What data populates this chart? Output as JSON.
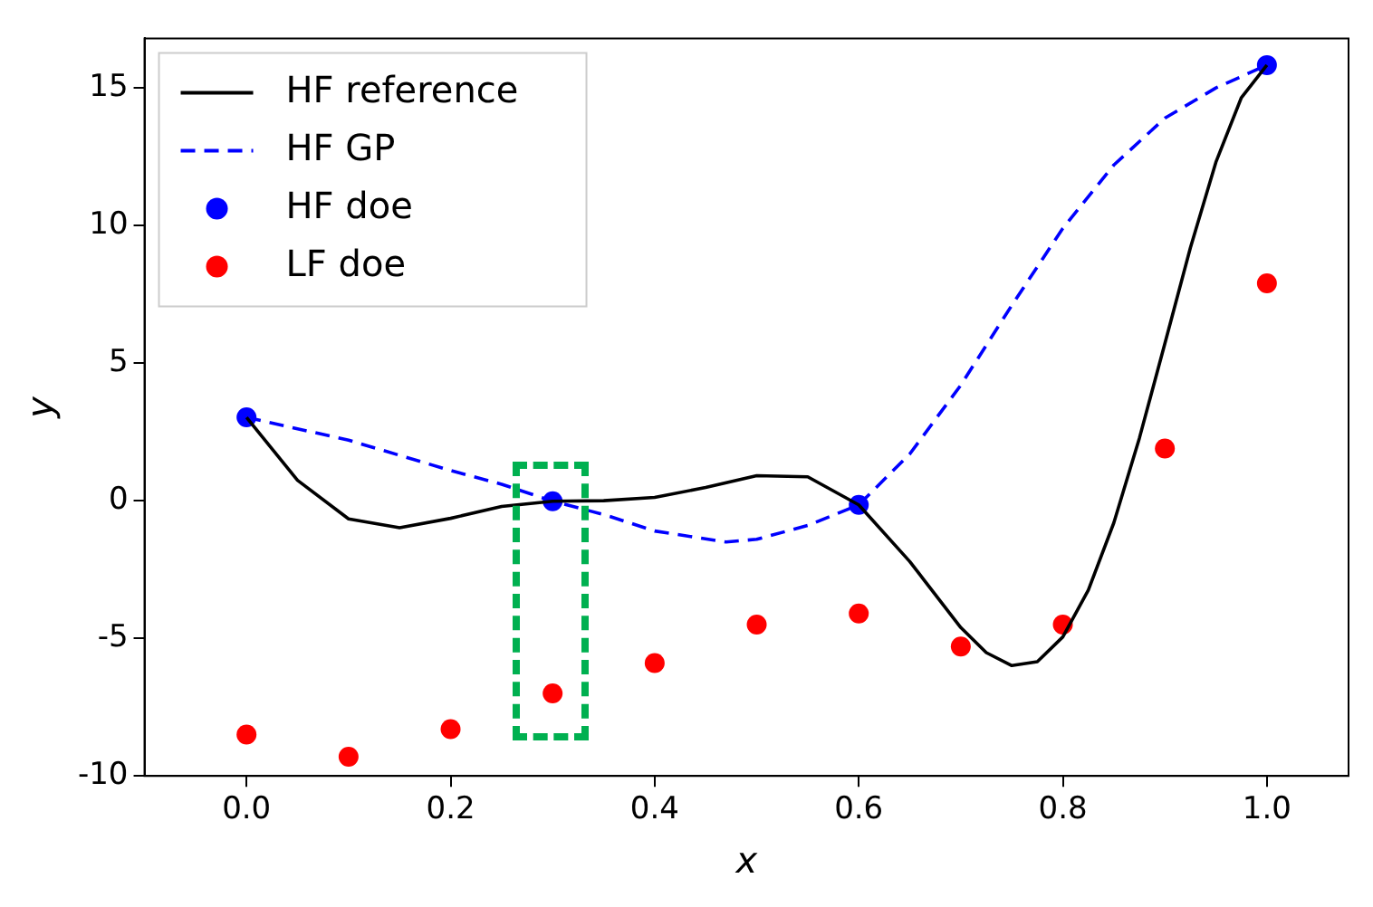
{
  "chart_data": {
    "type": "line",
    "xlabel": "x",
    "ylabel": "y",
    "xlim": [
      -0.1,
      1.08
    ],
    "ylim": [
      -10,
      16.8
    ],
    "xticks": [
      {
        "value": 0,
        "label": "0.0"
      },
      {
        "value": 0.2,
        "label": "0.2"
      },
      {
        "value": 0.4,
        "label": "0.4"
      },
      {
        "value": 0.6,
        "label": "0.6"
      },
      {
        "value": 0.8,
        "label": "0.8"
      },
      {
        "value": 1,
        "label": "1.0"
      }
    ],
    "yticks": [
      -10,
      -5,
      0,
      5,
      10,
      15
    ],
    "grid": false,
    "legend": "top left",
    "series": [
      {
        "name": "HF reference",
        "type": "line",
        "color": "#000000",
        "line_style": "solid",
        "marker": "none",
        "x": [
          0,
          0.05,
          0.1,
          0.15,
          0.2,
          0.25,
          0.3,
          0.35,
          0.4,
          0.45,
          0.5,
          0.55,
          0.6,
          0.65,
          0.7,
          0.725,
          0.75,
          0.775,
          0.8,
          0.825,
          0.85,
          0.875,
          0.9,
          0.925,
          0.95,
          0.975,
          1
        ],
        "values": [
          3.03,
          0.74,
          -0.66,
          -0.98,
          -0.64,
          -0.21,
          -0.02,
          0,
          0.12,
          0.48,
          0.91,
          0.87,
          -0.15,
          -2.21,
          -4.61,
          -5.52,
          -5.99,
          -5.85,
          -4.95,
          -3.25,
          -0.8,
          2.27,
          5.71,
          9.19,
          12.3,
          14.65,
          15.83
        ]
      },
      {
        "name": "HF GP",
        "type": "line",
        "color": "#0000ff",
        "line_style": "dashed",
        "marker": "none",
        "x": [
          0,
          0.1,
          0.2,
          0.25,
          0.3,
          0.35,
          0.4,
          0.47,
          0.5,
          0.55,
          0.6,
          0.65,
          0.7,
          0.75,
          0.8,
          0.85,
          0.9,
          0.95,
          1
        ],
        "values": [
          3.03,
          2.2,
          1.1,
          0.6,
          -0.02,
          -0.5,
          -1.1,
          -1.5,
          -1.4,
          -0.9,
          -0.15,
          1.7,
          4.2,
          7.1,
          9.9,
          12.2,
          13.9,
          15,
          15.83
        ]
      },
      {
        "name": "HF doe",
        "type": "scatter",
        "color": "#0000ff",
        "marker": "circle",
        "x": [
          0,
          0.3,
          0.6,
          1
        ],
        "values": [
          3.03,
          -0.02,
          -0.15,
          15.83
        ]
      },
      {
        "name": "LF doe",
        "type": "scatter",
        "color": "#ff0000",
        "marker": "circle",
        "x": [
          0,
          0.1,
          0.2,
          0.3,
          0.4,
          0.5,
          0.6,
          0.7,
          0.8,
          0.9,
          1
        ],
        "values": [
          -8.5,
          -9.3,
          -8.3,
          -7,
          -5.9,
          -4.5,
          -4.1,
          -5.3,
          -4.5,
          1.9,
          7.9
        ]
      }
    ]
  }
}
